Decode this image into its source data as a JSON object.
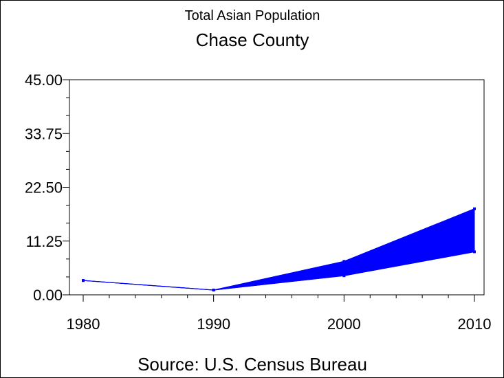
{
  "chart_data": {
    "type": "area",
    "title": "Total Asian Population",
    "subtitle": "Chase County",
    "source": "Source: U.S. Census Bureau",
    "x": [
      1980,
      1990,
      2000,
      2010
    ],
    "x_tick_labels": [
      "1980",
      "1990",
      "2000",
      "2010"
    ],
    "ylim": [
      0,
      45
    ],
    "y_ticks": [
      0,
      11.25,
      22.5,
      33.75,
      45
    ],
    "y_tick_labels": [
      "0.00",
      "11.25",
      "22.50",
      "33.75",
      "45.00"
    ],
    "series": [
      {
        "values": [
          3,
          1,
          4,
          9
        ]
      },
      {
        "values": [
          3,
          1,
          7,
          18
        ]
      }
    ],
    "grid": false,
    "legend": "none",
    "color": "#0000ff"
  }
}
